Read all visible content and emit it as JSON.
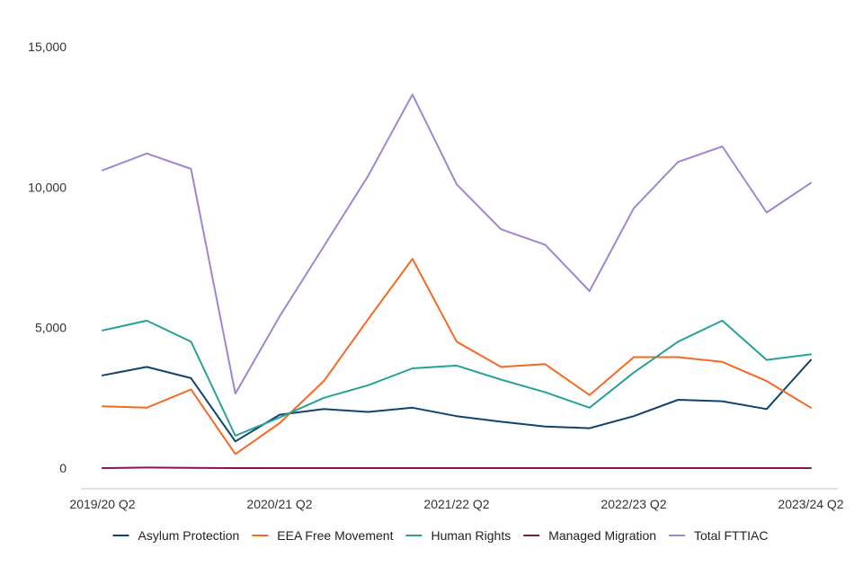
{
  "chart_data": {
    "type": "line",
    "title": "",
    "xlabel": "",
    "ylabel": "",
    "ylim": [
      0,
      15000
    ],
    "y_ticks": [
      0,
      5000,
      10000,
      15000
    ],
    "y_tick_labels": [
      "0",
      "5,000",
      "10,000",
      "15,000"
    ],
    "categories": [
      "2019/20 Q2",
      "2019/20 Q3",
      "2019/20 Q4",
      "2020/21 Q1",
      "2020/21 Q2",
      "2020/21 Q3",
      "2020/21 Q4",
      "2021/22 Q1",
      "2021/22 Q2",
      "2021/22 Q3",
      "2021/22 Q4",
      "2022/23 Q1",
      "2022/23 Q2",
      "2022/23 Q3",
      "2022/23 Q4",
      "2023/24 Q1",
      "2023/24 Q2"
    ],
    "x_tick_labels": [
      "2019/20 Q2",
      "2020/21 Q2",
      "2021/22 Q2",
      "2022/23 Q2",
      "2023/24 Q2"
    ],
    "x_tick_indices": [
      0,
      4,
      8,
      12,
      16
    ],
    "grid": false,
    "legend_position": "bottom",
    "series": [
      {
        "name": "Asylum Protection",
        "color": "#12436d",
        "values": [
          3300,
          3600,
          3200,
          950,
          1900,
          2100,
          2000,
          2150,
          1850,
          1650,
          1480,
          1420,
          1850,
          2430,
          2380,
          2100,
          3850
        ]
      },
      {
        "name": "EEA Free Movement",
        "color": "#f46a25",
        "values": [
          2200,
          2150,
          2800,
          500,
          1600,
          3100,
          5300,
          7450,
          4500,
          3600,
          3700,
          2600,
          3950,
          3950,
          3780,
          3100,
          2150
        ]
      },
      {
        "name": "Human Rights",
        "color": "#28a197",
        "values": [
          4900,
          5250,
          4500,
          1150,
          1800,
          2500,
          2950,
          3550,
          3650,
          3150,
          2700,
          2150,
          3400,
          4500,
          5250,
          3850,
          4050
        ]
      },
      {
        "name": "Managed Migration",
        "color": "#801650",
        "values": [
          0,
          20,
          10,
          0,
          0,
          0,
          0,
          0,
          0,
          0,
          0,
          0,
          0,
          0,
          0,
          0,
          0
        ]
      },
      {
        "name": "Total FTTIAC",
        "color": "#a285d1",
        "values": [
          10600,
          11200,
          10650,
          2650,
          5400,
          7900,
          10400,
          13300,
          10100,
          8500,
          7950,
          6300,
          9250,
          10900,
          11450,
          9100,
          10150
        ]
      }
    ]
  }
}
